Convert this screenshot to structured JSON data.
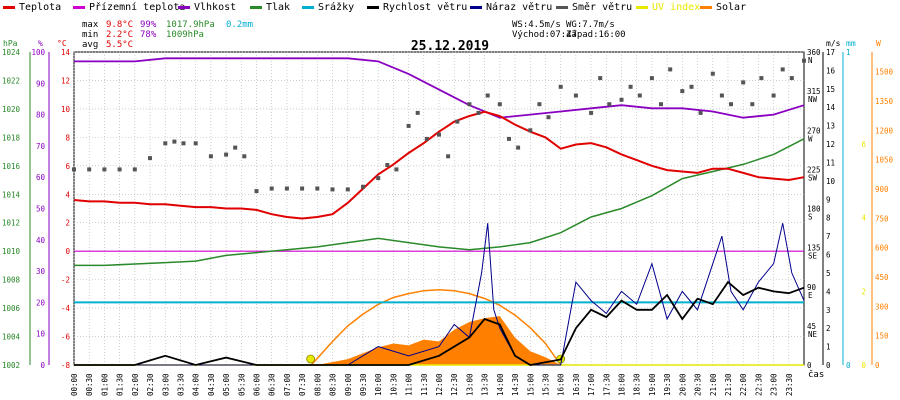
{
  "legend": {
    "items": [
      {
        "label": "Teplota",
        "color": "#e00000"
      },
      {
        "label": "Přízemní teplota",
        "color": "#d000d0"
      },
      {
        "label": "Vlhkost",
        "color": "#8a00c0"
      },
      {
        "label": "Tlak",
        "color": "#2a8a2a"
      },
      {
        "label": "Srážky",
        "color": "#00b0d0"
      },
      {
        "label": "Rychlost větru",
        "color": "#000000"
      },
      {
        "label": "Náraz větru",
        "color": "#00008b"
      },
      {
        "label": "Směr větru",
        "color": "#555555"
      },
      {
        "label": "UV index",
        "color": "#e8e800"
      },
      {
        "label": "Solar",
        "color": "#ff8000"
      }
    ]
  },
  "stats": {
    "max_label": "max",
    "max_temp": "9.8°C",
    "max_hum": "99%",
    "max_press": "1017.9hPa",
    "max_rain": "0.2mm",
    "min_label": "min",
    "min_temp": "2.2°C",
    "min_hum": "78%",
    "min_press": "1009hPa",
    "avg_label": "avg",
    "avg_temp": "5.5°C",
    "ws": "WS:4.5m/s",
    "wg": "WG:7.7m/s",
    "sunrise": "Východ:07:47",
    "sunset": "Západ:16:00"
  },
  "colors": {
    "temp": "#e00000",
    "dew": "#d000d0",
    "hum": "#8a00c0",
    "press": "#2a8a2a",
    "rain": "#00b0d0",
    "wind": "#000000",
    "gust": "#00008b",
    "dir": "#555555",
    "uv": "#e8e800",
    "solar": "#ff8000",
    "grid": "#b0b0b0"
  },
  "chart_data": {
    "type": "line",
    "title": "25.12.2019",
    "xlabel": "čas",
    "x_ticks": [
      "00:00",
      "00:30",
      "01:00",
      "01:30",
      "02:00",
      "02:30",
      "03:00",
      "03:30",
      "04:00",
      "04:30",
      "05:00",
      "05:30",
      "06:00",
      "06:30",
      "07:00",
      "07:30",
      "08:00",
      "08:30",
      "09:00",
      "09:30",
      "10:00",
      "10:30",
      "11:00",
      "11:30",
      "12:00",
      "12:30",
      "13:00",
      "13:30",
      "14:00",
      "14:30",
      "15:00",
      "15:30",
      "16:00",
      "16:30",
      "17:00",
      "17:30",
      "18:00",
      "18:30",
      "19:00",
      "19:30",
      "20:00",
      "20:30",
      "21:00",
      "21:30",
      "22:00",
      "22:30",
      "23:00",
      "23:30"
    ],
    "axes": {
      "hPa": {
        "label": "hPa",
        "range": [
          1002,
          1024
        ],
        "ticks": [
          "1002",
          "1004",
          "1006",
          "1008",
          "1010",
          "1012",
          "1014",
          "1016",
          "1018",
          "1020",
          "1022",
          "1024"
        ]
      },
      "pct": {
        "label": "%",
        "range": [
          0,
          100
        ],
        "ticks": [
          "0",
          "10",
          "20",
          "30",
          "40",
          "50",
          "60",
          "70",
          "80",
          "90",
          "100"
        ]
      },
      "degC": {
        "label": "°C",
        "range": [
          -8,
          14
        ],
        "ticks": [
          "-8",
          "-6",
          "-4",
          "-2",
          "0",
          "2",
          "4",
          "6",
          "8",
          "10",
          "12",
          "14"
        ]
      },
      "dir": {
        "range": [
          0,
          360
        ],
        "ticks": [
          "0",
          "45",
          "90",
          "135",
          "180",
          "225",
          "270",
          "315",
          "360"
        ],
        "dir_labels": [
          "",
          "NE",
          "E",
          "SE",
          "S",
          "SW",
          "W",
          "NW",
          "N"
        ]
      },
      "ms": {
        "label": "m/s",
        "range": [
          0,
          17
        ],
        "ticks": [
          "0",
          "1",
          "2",
          "3",
          "4",
          "5",
          "6",
          "7",
          "8",
          "9",
          "10",
          "11",
          "12",
          "13",
          "14",
          "15",
          "16",
          "17"
        ]
      },
      "mm": {
        "label": "mm",
        "range": [
          0,
          1
        ],
        "ticks": [
          "0",
          "1"
        ]
      },
      "uv": {
        "label": "W",
        "range": [
          0,
          17
        ],
        "ticks": [
          "0",
          "1",
          "2",
          "3",
          "4",
          "5",
          "6",
          "7",
          "8",
          "9",
          "10",
          "11",
          "12",
          "13",
          "14",
          "15",
          "16",
          "17"
        ],
        "uv_ticks": [
          "0",
          "2",
          "4",
          "6"
        ]
      },
      "solar": {
        "range": [
          0,
          1600
        ],
        "ticks": [
          "0",
          "150",
          "300",
          "450",
          "600",
          "750",
          "900",
          "1050",
          "1200",
          "1350",
          "1500"
        ]
      }
    },
    "series": [
      {
        "name": "Teplota",
        "axis": "degC",
        "x": [
          0,
          0.5,
          1,
          1.5,
          2,
          2.5,
          3,
          3.5,
          4,
          4.5,
          5,
          5.5,
          6,
          6.5,
          7,
          7.5,
          8,
          8.5,
          9,
          9.5,
          10,
          10.5,
          11,
          11.5,
          12,
          12.5,
          13,
          13.5,
          14,
          14.5,
          15,
          15.5,
          16,
          16.5,
          17,
          17.5,
          18,
          18.5,
          19,
          19.5,
          20,
          20.5,
          21,
          21.5,
          22,
          22.5,
          23,
          23.5,
          24
        ],
        "y": [
          3.6,
          3.5,
          3.5,
          3.4,
          3.4,
          3.3,
          3.3,
          3.2,
          3.1,
          3.1,
          3.0,
          3.0,
          2.9,
          2.6,
          2.4,
          2.3,
          2.4,
          2.6,
          3.4,
          4.4,
          5.4,
          6.1,
          6.9,
          7.6,
          8.4,
          9.1,
          9.5,
          9.8,
          9.5,
          8.9,
          8.4,
          8.0,
          7.2,
          7.5,
          7.6,
          7.3,
          6.8,
          6.4,
          6.0,
          5.7,
          5.6,
          5.5,
          5.8,
          5.8,
          5.5,
          5.2,
          5.1,
          5.0,
          5.2
        ]
      },
      {
        "name": "Vlhkost",
        "axis": "pct",
        "x": [
          0,
          1,
          2,
          3,
          4,
          5,
          6,
          7,
          8,
          9,
          10,
          11,
          12,
          13,
          14,
          15,
          16,
          17,
          18,
          19,
          20,
          21,
          22,
          23,
          24
        ],
        "y": [
          97,
          97,
          97,
          98,
          98,
          98,
          98,
          98,
          98,
          98,
          97,
          93,
          88,
          83,
          79,
          80,
          81,
          82,
          83,
          82,
          82,
          81,
          79,
          80,
          83
        ]
      },
      {
        "name": "Tlak",
        "axis": "hPa",
        "x": [
          0,
          1,
          2,
          3,
          4,
          5,
          6,
          7,
          8,
          9,
          10,
          11,
          12,
          13,
          14,
          15,
          16,
          17,
          18,
          19,
          20,
          21,
          22,
          23,
          24
        ],
        "y": [
          1009.0,
          1009.0,
          1009.1,
          1009.2,
          1009.3,
          1009.7,
          1009.9,
          1010.1,
          1010.3,
          1010.6,
          1010.9,
          1010.6,
          1010.3,
          1010.1,
          1010.3,
          1010.6,
          1011.3,
          1012.4,
          1013.0,
          1013.9,
          1015.1,
          1015.6,
          1016.1,
          1016.8,
          1017.9
        ]
      },
      {
        "name": "Přízemní teplota",
        "axis": "degC",
        "x": [
          0,
          24
        ],
        "y": [
          0,
          0
        ]
      },
      {
        "name": "Srážky",
        "axis": "mm",
        "x": [
          0,
          24
        ],
        "y": [
          0.2,
          0.2
        ]
      },
      {
        "name": "Rychlost větru",
        "axis": "ms",
        "x": [
          0,
          2,
          3,
          4,
          5,
          6,
          7,
          8,
          9,
          10,
          11,
          12,
          13,
          13.5,
          14,
          14.5,
          15,
          16,
          16.5,
          17,
          17.5,
          18,
          18.5,
          19,
          19.5,
          20,
          20.5,
          21,
          21.5,
          22,
          22.5,
          23,
          23.5,
          24
        ],
        "y": [
          0,
          0,
          0.5,
          0,
          0.4,
          0,
          0,
          0,
          0,
          0,
          0,
          0.5,
          1.5,
          2.5,
          2.2,
          0.5,
          0,
          0.3,
          2.0,
          3.0,
          2.6,
          3.5,
          3.0,
          3.0,
          3.8,
          2.5,
          3.6,
          3.3,
          4.5,
          3.8,
          4.2,
          4.0,
          3.9,
          4.2
        ]
      },
      {
        "name": "Náraz větru",
        "axis": "ms",
        "x": [
          0,
          9,
          10,
          11,
          12,
          12.5,
          13,
          13.4,
          13.6,
          13.8,
          14,
          14.5,
          15,
          16,
          16.5,
          17,
          17.5,
          18,
          18.5,
          19,
          19.5,
          20,
          20.5,
          21,
          21.3,
          21.6,
          22,
          22.5,
          23,
          23.3,
          23.6,
          24
        ],
        "y": [
          0,
          0,
          1.0,
          0.5,
          1.0,
          2.2,
          1.5,
          5.0,
          7.7,
          3.0,
          2.0,
          0.5,
          0,
          0,
          4.5,
          3.5,
          2.8,
          4.0,
          3.3,
          5.5,
          2.5,
          4.0,
          3.0,
          5.5,
          7.0,
          4.0,
          3.0,
          4.5,
          5.5,
          7.7,
          5.0,
          3.5
        ]
      },
      {
        "name": "Solar",
        "axis": "solar",
        "x": [
          8.0,
          9.0,
          9.5,
          10,
          10.5,
          11,
          11.5,
          12,
          12.5,
          13,
          13.5,
          14,
          14.5,
          15,
          15.5,
          16
        ],
        "y": [
          0,
          30,
          60,
          90,
          110,
          100,
          130,
          120,
          180,
          220,
          240,
          250,
          140,
          70,
          40,
          0
        ]
      },
      {
        "name": "Solar max",
        "axis": "solar",
        "x": [
          7.8,
          8.5,
          9,
          9.5,
          10,
          10.5,
          11,
          11.5,
          12,
          12.5,
          13,
          13.5,
          14,
          14.5,
          15,
          15.5,
          16
        ],
        "y": [
          0,
          120,
          200,
          260,
          310,
          345,
          365,
          380,
          385,
          380,
          365,
          340,
          305,
          255,
          190,
          110,
          0
        ]
      },
      {
        "name": "UV index",
        "axis": "uv",
        "x": [
          0,
          24
        ],
        "y": [
          0,
          0
        ]
      },
      {
        "name": "Směr větru",
        "axis": "dir",
        "type": "scatter",
        "x": [
          0,
          0.5,
          1,
          1.5,
          2,
          2.5,
          3,
          3.3,
          3.6,
          4,
          4.5,
          5,
          5.3,
          5.6,
          6,
          6.5,
          7,
          7.5,
          8,
          8.5,
          9,
          9.5,
          10,
          10.3,
          10.6,
          11,
          11.3,
          11.6,
          12,
          12.3,
          12.6,
          13,
          13.3,
          13.6,
          14,
          14.3,
          14.6,
          15,
          15.3,
          15.6,
          16,
          16.5,
          17,
          17.3,
          17.6,
          18,
          18.3,
          18.6,
          19,
          19.3,
          19.6,
          20,
          20.3,
          20.6,
          21,
          21.3,
          21.6,
          22,
          22.3,
          22.6,
          23,
          23.3,
          23.6,
          24
        ],
        "y": [
          225,
          225,
          225,
          225,
          225,
          238,
          255,
          257,
          255,
          255,
          240,
          242,
          250,
          240,
          200,
          203,
          203,
          203,
          203,
          202,
          202,
          205,
          215,
          230,
          225,
          275,
          290,
          260,
          265,
          240,
          280,
          300,
          290,
          310,
          300,
          260,
          250,
          270,
          300,
          285,
          320,
          310,
          290,
          330,
          300,
          305,
          320,
          310,
          330,
          300,
          340,
          315,
          320,
          290,
          335,
          310,
          300,
          325,
          300,
          330,
          310,
          340,
          330,
          350
        ]
      }
    ]
  }
}
